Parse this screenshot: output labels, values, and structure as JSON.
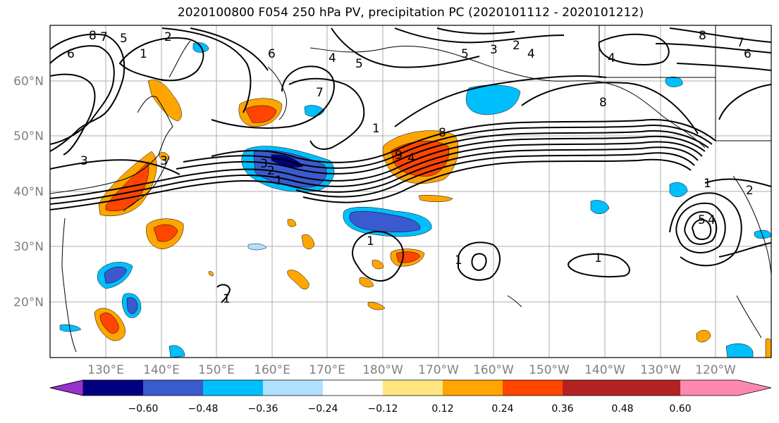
{
  "title": "2020100800 F054 250 hPa PV, precipitation PC (2020101112 - 2020101212)",
  "map": {
    "lat_labels": [
      "60°N",
      "50°N",
      "40°N",
      "30°N",
      "20°N"
    ],
    "lon_labels": [
      "130°E",
      "140°E",
      "150°E",
      "160°E",
      "170°E",
      "180°W",
      "170°W",
      "160°W",
      "150°W",
      "140°W",
      "130°W",
      "120°W"
    ],
    "contour_labels": [
      "8",
      "7",
      "5",
      "2",
      "1",
      "6",
      "6",
      "4",
      "5",
      "7",
      "5",
      "3",
      "2",
      "4",
      "8",
      "7",
      "6",
      "4",
      "8",
      "3",
      "3",
      "3",
      "2",
      "1",
      "9",
      "4",
      "8",
      "1",
      "1",
      "1",
      "1",
      "2",
      "1",
      "5",
      "4",
      "1"
    ]
  },
  "colorbar": {
    "colors": [
      "#9932cc",
      "#000080",
      "#3a5bcf",
      "#00bfff",
      "#b0e0ff",
      "#ffffff",
      "#ffe680",
      "#ffa500",
      "#ff4500",
      "#b22222",
      "#ff88b0"
    ],
    "tick_labels": [
      "−0.60",
      "−0.48",
      "−0.36",
      "−0.24",
      "−0.12",
      "0.12",
      "0.24",
      "0.36",
      "0.48",
      "0.60"
    ]
  }
}
